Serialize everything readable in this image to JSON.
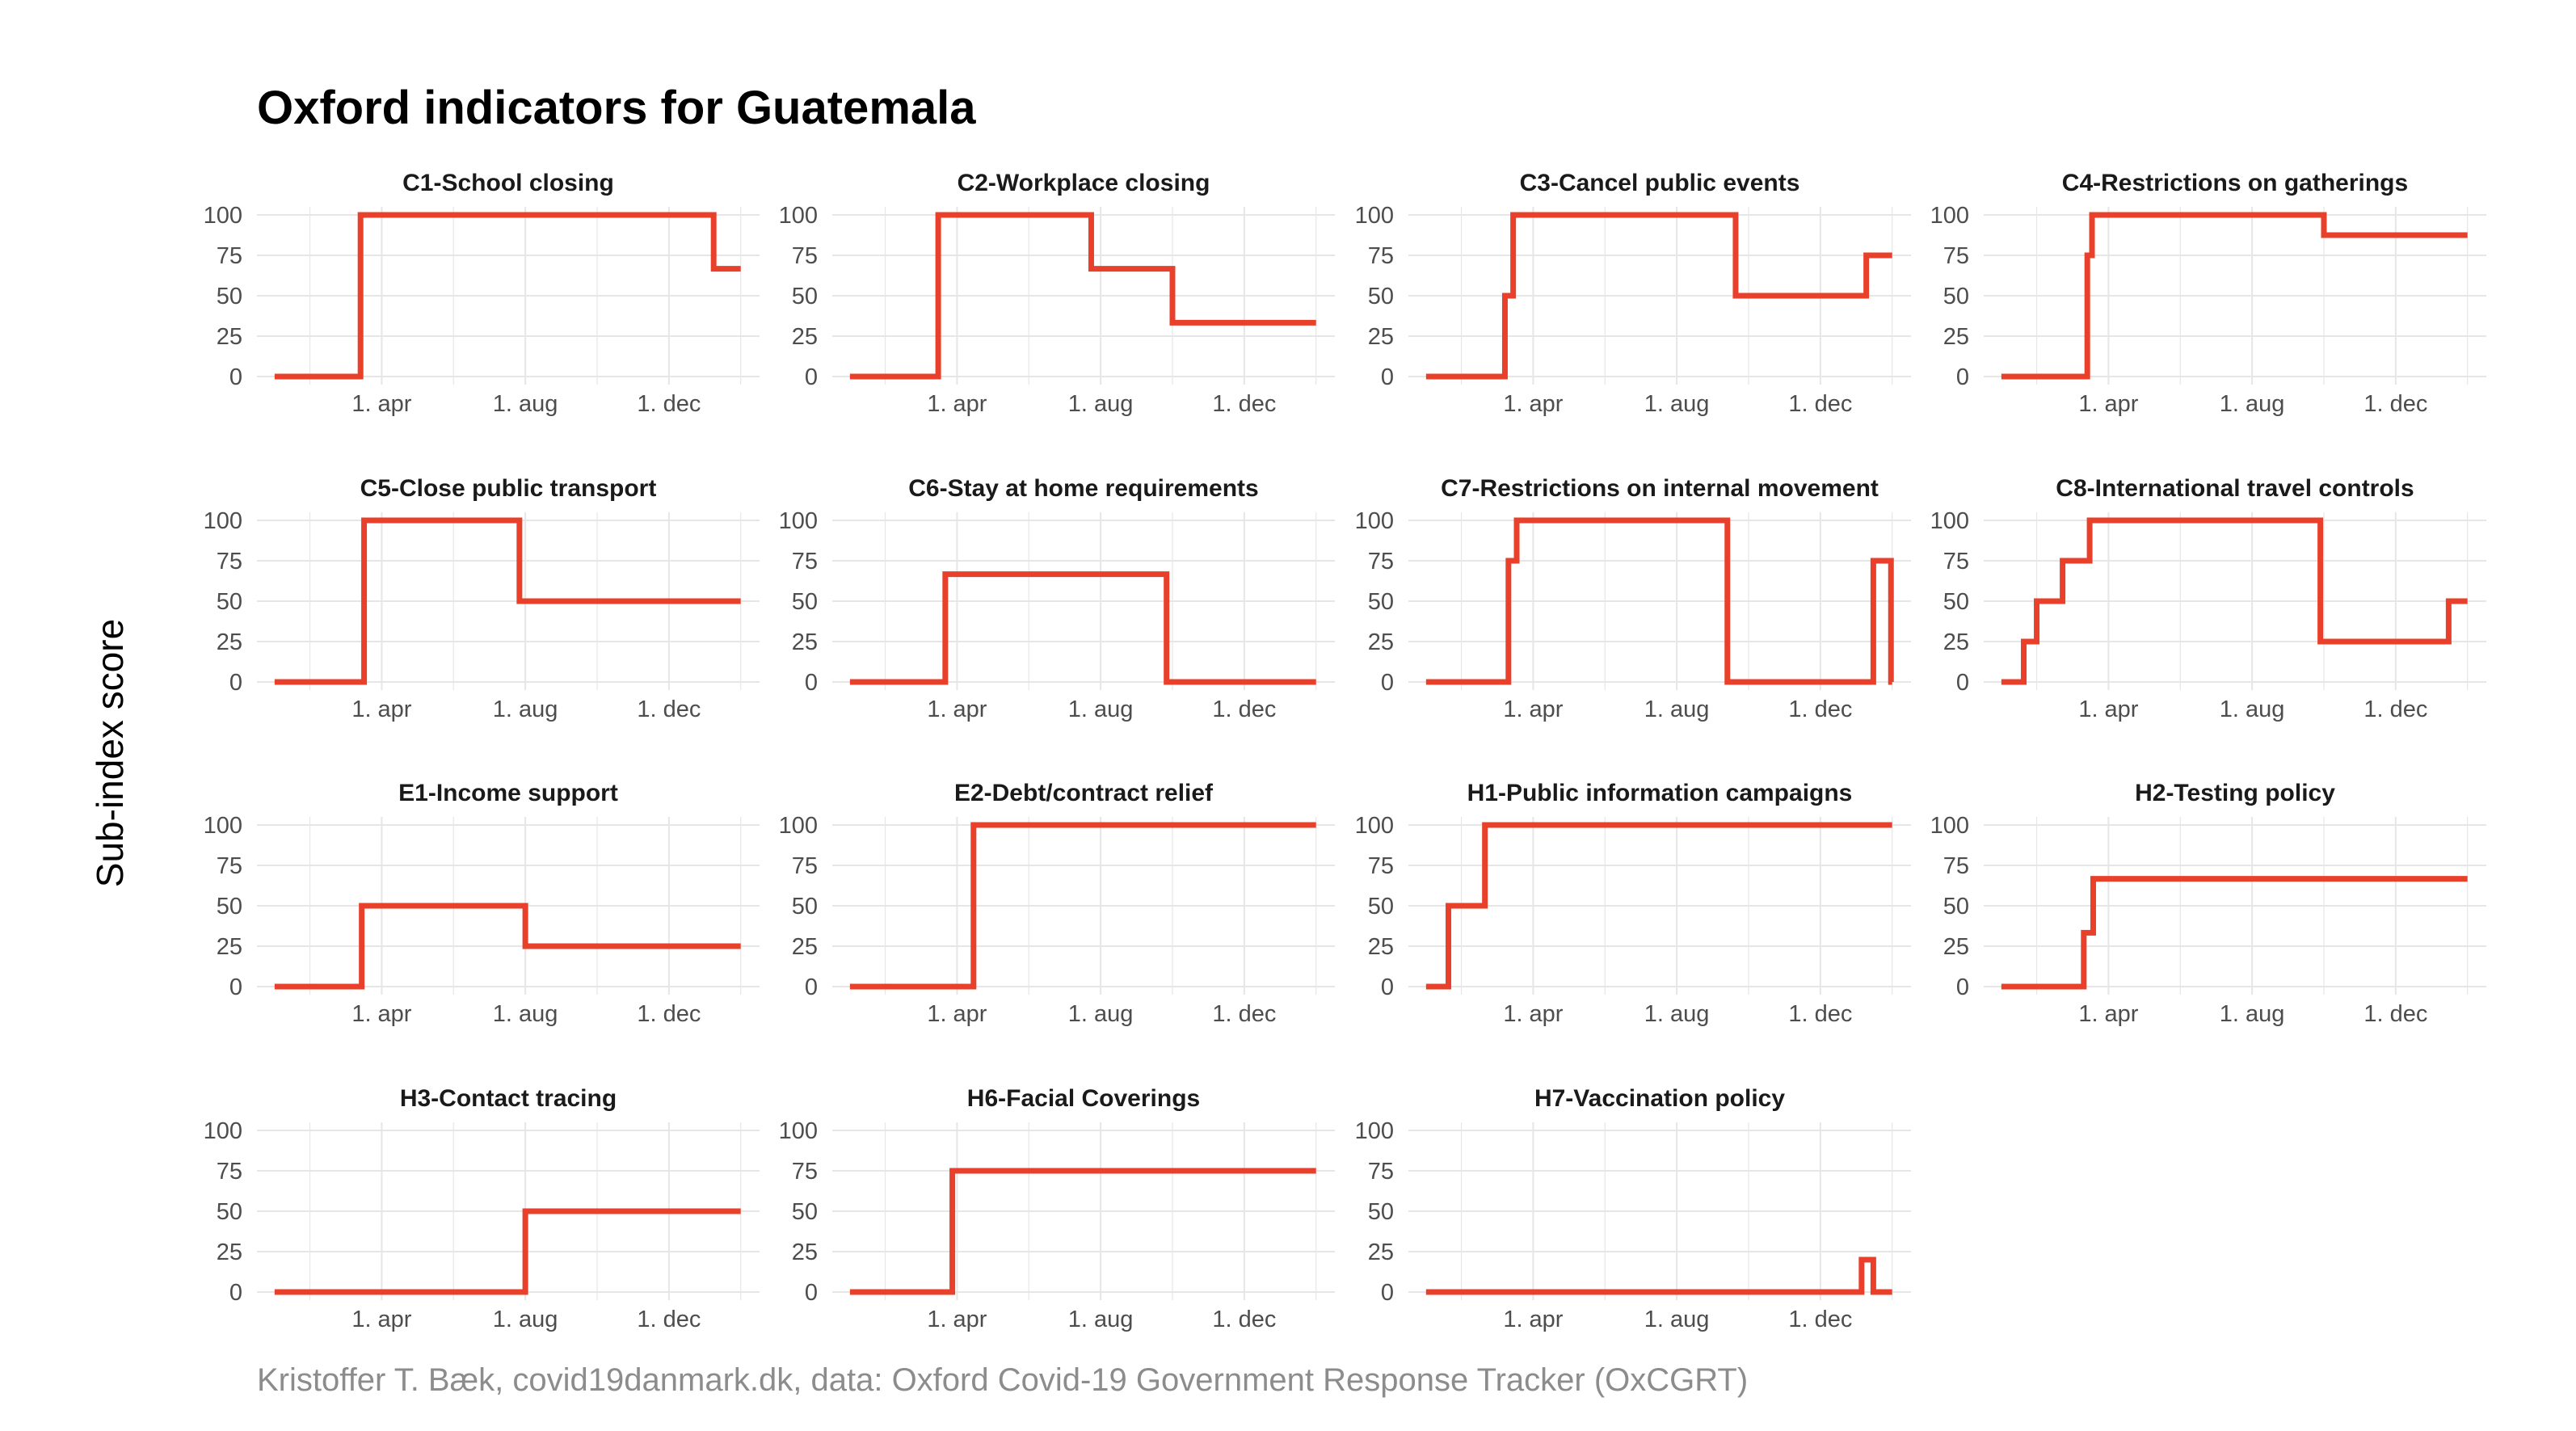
{
  "title": "Oxford indicators for Guatemala",
  "ylabel": "Sub-index score",
  "caption": "Kristoffer T. Bæk, covid19danmark.dk, data: Oxford Covid-19 Government Response Tracker (OxCGRT)",
  "colors": {
    "line": "#e8402a",
    "grid": "#e6e6e6",
    "axis_text": "#4d4d4d"
  },
  "chart_data": [
    {
      "type": "line",
      "title": "C1-School closing",
      "xlabel": "",
      "ylabel": "Sub-index score",
      "yticks": [
        0,
        25,
        50,
        75,
        100
      ],
      "xticks": [
        "1. apr",
        "1. aug",
        "1. dec"
      ],
      "ylim": [
        0,
        100
      ],
      "x": [
        "2020-01-01",
        "2020-03-14",
        "2021-01-08",
        "2021-01-31"
      ],
      "y": [
        0,
        100,
        66.7,
        66.7
      ]
    },
    {
      "type": "line",
      "title": "C2-Workplace closing",
      "xlabel": "",
      "ylabel": "Sub-index score",
      "yticks": [
        0,
        25,
        50,
        75,
        100
      ],
      "xticks": [
        "1. apr",
        "1. aug",
        "1. dec"
      ],
      "ylim": [
        0,
        100
      ],
      "x": [
        "2020-01-01",
        "2020-03-16",
        "2020-07-24",
        "2020-10-01",
        "2021-01-31"
      ],
      "y": [
        0,
        100,
        66.7,
        33.3,
        33.3
      ]
    },
    {
      "type": "line",
      "title": "C3-Cancel public events",
      "xlabel": "",
      "ylabel": "Sub-index score",
      "yticks": [
        0,
        25,
        50,
        75,
        100
      ],
      "xticks": [
        "1. apr",
        "1. aug",
        "1. dec"
      ],
      "ylim": [
        0,
        100
      ],
      "x": [
        "2020-01-01",
        "2020-03-08",
        "2020-03-15",
        "2020-09-20",
        "2021-01-09",
        "2021-01-31"
      ],
      "y": [
        0,
        50,
        100,
        50,
        75,
        75
      ]
    },
    {
      "type": "line",
      "title": "C4-Restrictions on gatherings",
      "xlabel": "",
      "ylabel": "Sub-index score",
      "yticks": [
        0,
        25,
        50,
        75,
        100
      ],
      "xticks": [
        "1. apr",
        "1. aug",
        "1. dec"
      ],
      "ylim": [
        0,
        100
      ],
      "x": [
        "2020-01-01",
        "2020-03-14",
        "2020-03-18",
        "2020-10-01",
        "2021-01-31"
      ],
      "y": [
        0,
        75,
        100,
        87.5,
        87.5
      ]
    },
    {
      "type": "line",
      "title": "C5-Close public transport",
      "xlabel": "",
      "ylabel": "Sub-index score",
      "yticks": [
        0,
        25,
        50,
        75,
        100
      ],
      "xticks": [
        "1. apr",
        "1. aug",
        "1. dec"
      ],
      "ylim": [
        0,
        100
      ],
      "x": [
        "2020-01-01",
        "2020-03-17",
        "2020-07-27",
        "2021-01-31"
      ],
      "y": [
        0,
        100,
        50,
        50
      ]
    },
    {
      "type": "line",
      "title": "C6-Stay at home requirements",
      "xlabel": "",
      "ylabel": "Sub-index score",
      "yticks": [
        0,
        25,
        50,
        75,
        100
      ],
      "xticks": [
        "1. apr",
        "1. aug",
        "1. dec"
      ],
      "ylim": [
        0,
        100
      ],
      "x": [
        "2020-01-01",
        "2020-03-22",
        "2020-09-26",
        "2021-01-31"
      ],
      "y": [
        0,
        66.7,
        0,
        0
      ]
    },
    {
      "type": "line",
      "title": "C7-Restrictions on internal movement",
      "xlabel": "",
      "ylabel": "Sub-index score",
      "yticks": [
        0,
        25,
        50,
        75,
        100
      ],
      "xticks": [
        "1. apr",
        "1. aug",
        "1. dec"
      ],
      "ylim": [
        0,
        100
      ],
      "x": [
        "2020-01-01",
        "2020-03-11",
        "2020-03-18",
        "2020-09-13",
        "2021-01-15",
        "2021-01-30",
        "2021-01-31"
      ],
      "y": [
        0,
        75,
        100,
        0,
        75,
        0,
        0
      ]
    },
    {
      "type": "line",
      "title": "C8-International travel controls",
      "xlabel": "",
      "ylabel": "Sub-index score",
      "yticks": [
        0,
        25,
        50,
        75,
        100
      ],
      "xticks": [
        "1. apr",
        "1. aug",
        "1. dec"
      ],
      "ylim": [
        0,
        100
      ],
      "x": [
        "2020-01-01",
        "2020-01-20",
        "2020-01-31",
        "2020-02-22",
        "2020-03-16",
        "2020-09-28",
        "2021-01-15",
        "2021-01-31"
      ],
      "y": [
        0,
        25,
        50,
        75,
        100,
        25,
        50,
        50
      ]
    },
    {
      "type": "line",
      "title": "E1-Income support",
      "xlabel": "",
      "ylabel": "Sub-index score",
      "yticks": [
        0,
        25,
        50,
        75,
        100
      ],
      "xticks": [
        "1. apr",
        "1. aug",
        "1. dec"
      ],
      "ylim": [
        0,
        100
      ],
      "x": [
        "2020-01-01",
        "2020-03-15",
        "2020-08-01",
        "2021-01-31"
      ],
      "y": [
        0,
        50,
        25,
        25
      ]
    },
    {
      "type": "line",
      "title": "E2-Debt/contract relief",
      "xlabel": "",
      "ylabel": "Sub-index score",
      "yticks": [
        0,
        25,
        50,
        75,
        100
      ],
      "xticks": [
        "1. apr",
        "1. aug",
        "1. dec"
      ],
      "ylim": [
        0,
        100
      ],
      "x": [
        "2020-01-01",
        "2020-04-15",
        "2021-01-31"
      ],
      "y": [
        0,
        100,
        100
      ]
    },
    {
      "type": "line",
      "title": "H1-Public information campaigns",
      "xlabel": "",
      "ylabel": "Sub-index score",
      "yticks": [
        0,
        25,
        50,
        75,
        100
      ],
      "xticks": [
        "1. apr",
        "1. aug",
        "1. dec"
      ],
      "ylim": [
        0,
        100
      ],
      "x": [
        "2020-01-01",
        "2020-01-20",
        "2020-02-20",
        "2021-01-31"
      ],
      "y": [
        0,
        50,
        100,
        100
      ]
    },
    {
      "type": "line",
      "title": "H2-Testing policy",
      "xlabel": "",
      "ylabel": "Sub-index score",
      "yticks": [
        0,
        25,
        50,
        75,
        100
      ],
      "xticks": [
        "1. apr",
        "1. aug",
        "1. dec"
      ],
      "ylim": [
        0,
        100
      ],
      "x": [
        "2020-01-01",
        "2020-03-11",
        "2020-03-19",
        "2021-01-31"
      ],
      "y": [
        0,
        33.3,
        66.7,
        66.7
      ]
    },
    {
      "type": "line",
      "title": "H3-Contact tracing",
      "xlabel": "",
      "ylabel": "Sub-index score",
      "yticks": [
        0,
        25,
        50,
        75,
        100
      ],
      "xticks": [
        "1. apr",
        "1. aug",
        "1. dec"
      ],
      "ylim": [
        0,
        100
      ],
      "x": [
        "2020-01-01",
        "2020-08-01",
        "2021-01-31"
      ],
      "y": [
        0,
        50,
        50
      ]
    },
    {
      "type": "line",
      "title": "H6-Facial Coverings",
      "xlabel": "",
      "ylabel": "Sub-index score",
      "yticks": [
        0,
        25,
        50,
        75,
        100
      ],
      "xticks": [
        "1. apr",
        "1. aug",
        "1. dec"
      ],
      "ylim": [
        0,
        100
      ],
      "x": [
        "2020-01-01",
        "2020-03-28",
        "2021-01-31"
      ],
      "y": [
        0,
        75,
        75
      ]
    },
    {
      "type": "line",
      "title": "H7-Vaccination policy",
      "xlabel": "",
      "ylabel": "Sub-index score",
      "yticks": [
        0,
        25,
        50,
        75,
        100
      ],
      "xticks": [
        "1. apr",
        "1. aug",
        "1. dec"
      ],
      "ylim": [
        0,
        100
      ],
      "x": [
        "2020-01-01",
        "2021-01-05",
        "2021-01-15",
        "2021-01-31"
      ],
      "y": [
        0,
        20,
        0,
        0
      ]
    }
  ]
}
